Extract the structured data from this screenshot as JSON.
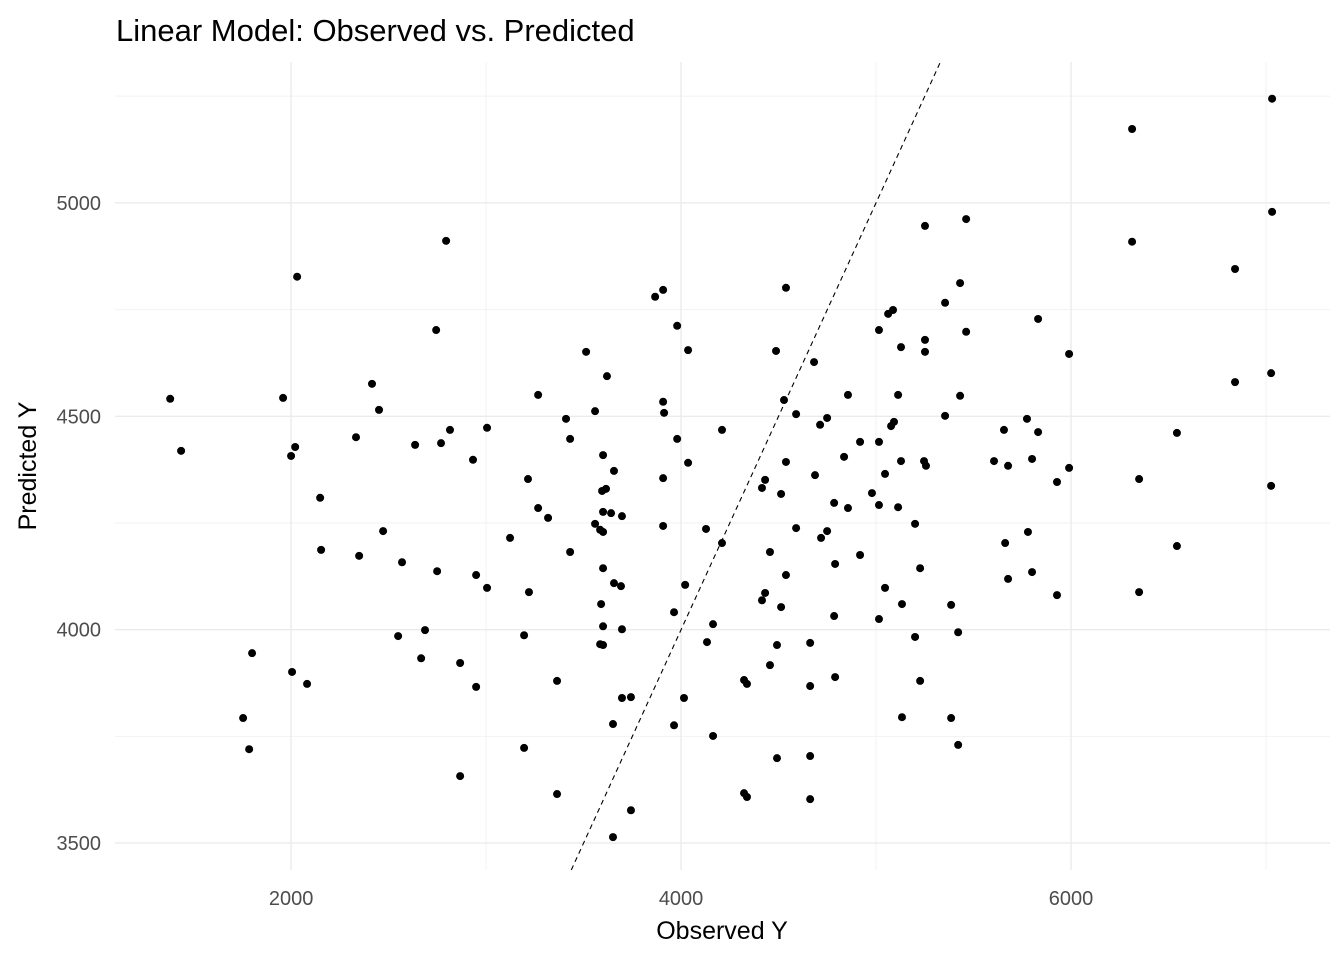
{
  "chart_data": {
    "type": "scatter",
    "title": "Linear Model: Observed vs. Predicted",
    "xlabel": "Observed Y",
    "ylabel": "Predicted Y",
    "xlim": [
      1097,
      7328
    ],
    "ylim": [
      3437,
      5330
    ],
    "x_ticks": [
      2000,
      4000,
      6000
    ],
    "y_ticks": [
      3500,
      4000,
      4500,
      5000
    ],
    "x_tick_labels": [
      "2000",
      "4000",
      "6000"
    ],
    "y_tick_labels": [
      "3500",
      "4000",
      "4500",
      "5000"
    ],
    "grid": true,
    "reference_line": {
      "type": "identity y = x",
      "style": "dashed"
    },
    "point_color": "#000000",
    "points": [
      [
        1380,
        4541
      ],
      [
        1436,
        4419
      ],
      [
        1754,
        3793
      ],
      [
        1785,
        3720
      ],
      [
        1800,
        3945
      ],
      [
        1959,
        4543
      ],
      [
        2000,
        4407
      ],
      [
        2021,
        4428
      ],
      [
        2031,
        4827
      ],
      [
        2005,
        3901
      ],
      [
        2082,
        3873
      ],
      [
        2149,
        4309
      ],
      [
        2154,
        4187
      ],
      [
        2333,
        4451
      ],
      [
        2349,
        4173
      ],
      [
        2415,
        4576
      ],
      [
        2451,
        4515
      ],
      [
        2472,
        4231
      ],
      [
        2549,
        3985
      ],
      [
        2569,
        4158
      ],
      [
        2636,
        4433
      ],
      [
        2667,
        3933
      ],
      [
        2687,
        3999
      ],
      [
        2744,
        4702
      ],
      [
        2749,
        4137
      ],
      [
        2769,
        4437
      ],
      [
        2795,
        4911
      ],
      [
        2815,
        4468
      ],
      [
        2867,
        3922
      ],
      [
        2867,
        3657
      ],
      [
        2933,
        4398
      ],
      [
        2949,
        4128
      ],
      [
        2949,
        3866
      ],
      [
        3005,
        4473
      ],
      [
        3005,
        4098
      ],
      [
        3123,
        4215
      ],
      [
        3195,
        3987
      ],
      [
        3195,
        3723
      ],
      [
        3215,
        4353
      ],
      [
        3220,
        4088
      ],
      [
        3267,
        4550
      ],
      [
        3267,
        4285
      ],
      [
        3318,
        4262
      ],
      [
        3364,
        3880
      ],
      [
        3364,
        3615
      ],
      [
        3410,
        4494
      ],
      [
        3431,
        4447
      ],
      [
        3431,
        4182
      ],
      [
        3513,
        4651
      ],
      [
        3559,
        4512
      ],
      [
        3559,
        4248
      ],
      [
        3585,
        4234
      ],
      [
        3600,
        4229
      ],
      [
        3585,
        3966
      ],
      [
        3600,
        3964
      ],
      [
        3590,
        4060
      ],
      [
        3600,
        4008
      ],
      [
        3600,
        4144
      ],
      [
        3600,
        4409
      ],
      [
        3595,
        4325
      ],
      [
        3615,
        4330
      ],
      [
        3620,
        4594
      ],
      [
        3600,
        4276
      ],
      [
        3641,
        4273
      ],
      [
        3656,
        4372
      ],
      [
        3656,
        4109
      ],
      [
        3651,
        3779
      ],
      [
        3651,
        3514
      ],
      [
        3692,
        4102
      ],
      [
        3697,
        4266
      ],
      [
        3697,
        4001
      ],
      [
        3697,
        3840
      ],
      [
        3743,
        3842
      ],
      [
        3743,
        3577
      ],
      [
        3867,
        4780
      ],
      [
        3908,
        4796
      ],
      [
        3908,
        4534
      ],
      [
        3913,
        4508
      ],
      [
        3908,
        4355
      ],
      [
        3908,
        4243
      ],
      [
        3964,
        4041
      ],
      [
        3964,
        3776
      ],
      [
        3980,
        4712
      ],
      [
        3980,
        4447
      ],
      [
        4021,
        4105
      ],
      [
        4015,
        3840
      ],
      [
        4036,
        4655
      ],
      [
        4036,
        4391
      ],
      [
        4128,
        4236
      ],
      [
        4133,
        3971
      ],
      [
        4164,
        4013
      ],
      [
        4164,
        3751
      ],
      [
        4210,
        4468
      ],
      [
        4210,
        4203
      ],
      [
        4323,
        3882
      ],
      [
        4338,
        3873
      ],
      [
        4323,
        3617
      ],
      [
        4338,
        3608
      ],
      [
        4415,
        4332
      ],
      [
        4415,
        4069
      ],
      [
        4431,
        4351
      ],
      [
        4431,
        4086
      ],
      [
        4456,
        4182
      ],
      [
        4456,
        3917
      ],
      [
        4487,
        4653
      ],
      [
        4492,
        3964
      ],
      [
        4492,
        3699
      ],
      [
        4513,
        4318
      ],
      [
        4513,
        4053
      ],
      [
        4528,
        4538
      ],
      [
        4538,
        4801
      ],
      [
        4538,
        4393
      ],
      [
        4538,
        4128
      ],
      [
        4590,
        4505
      ],
      [
        4590,
        4238
      ],
      [
        4662,
        3969
      ],
      [
        4662,
        3704
      ],
      [
        4662,
        3868
      ],
      [
        4662,
        3603
      ],
      [
        4682,
        4627
      ],
      [
        4687,
        4362
      ],
      [
        4713,
        4480
      ],
      [
        4718,
        4215
      ],
      [
        4749,
        4496
      ],
      [
        4749,
        4231
      ],
      [
        4785,
        4297
      ],
      [
        4785,
        4032
      ],
      [
        4790,
        4154
      ],
      [
        4790,
        3889
      ],
      [
        4836,
        4405
      ],
      [
        4856,
        4550
      ],
      [
        4856,
        4285
      ],
      [
        4918,
        4440
      ],
      [
        4918,
        4175
      ],
      [
        4979,
        4320
      ],
      [
        5015,
        4702
      ],
      [
        5015,
        4440
      ],
      [
        5015,
        4292
      ],
      [
        5015,
        4025
      ],
      [
        5046,
        4365
      ],
      [
        5046,
        4098
      ],
      [
        5062,
        4740
      ],
      [
        5087,
        4749
      ],
      [
        5077,
        4477
      ],
      [
        5092,
        4487
      ],
      [
        5113,
        4550
      ],
      [
        5113,
        4287
      ],
      [
        5128,
        4662
      ],
      [
        5128,
        4395
      ],
      [
        5133,
        4060
      ],
      [
        5133,
        3795
      ],
      [
        5200,
        4248
      ],
      [
        5200,
        3983
      ],
      [
        5226,
        4144
      ],
      [
        5226,
        3880
      ],
      [
        5251,
        4946
      ],
      [
        5251,
        4679
      ],
      [
        5251,
        4651
      ],
      [
        5246,
        4395
      ],
      [
        5256,
        4384
      ],
      [
        5354,
        4766
      ],
      [
        5354,
        4501
      ],
      [
        5385,
        4058
      ],
      [
        5385,
        3793
      ],
      [
        5421,
        3994
      ],
      [
        5421,
        3730
      ],
      [
        5431,
        4812
      ],
      [
        5431,
        4548
      ],
      [
        5462,
        4962
      ],
      [
        5462,
        4698
      ],
      [
        5605,
        4395
      ],
      [
        5656,
        4468
      ],
      [
        5662,
        4203
      ],
      [
        5677,
        4384
      ],
      [
        5677,
        4119
      ],
      [
        5774,
        4494
      ],
      [
        5779,
        4229
      ],
      [
        5800,
        4400
      ],
      [
        5800,
        4135
      ],
      [
        5831,
        4463
      ],
      [
        5831,
        4728
      ],
      [
        5928,
        4346
      ],
      [
        5928,
        4081
      ],
      [
        5990,
        4646
      ],
      [
        5990,
        4379
      ],
      [
        6313,
        5173
      ],
      [
        6313,
        4909
      ],
      [
        6349,
        4353
      ],
      [
        6349,
        4088
      ],
      [
        6543,
        4461
      ],
      [
        6543,
        4196
      ],
      [
        6841,
        4845
      ],
      [
        6841,
        4580
      ],
      [
        7031,
        5244
      ],
      [
        7031,
        4979
      ],
      [
        7026,
        4601
      ],
      [
        7026,
        4337
      ]
    ]
  }
}
